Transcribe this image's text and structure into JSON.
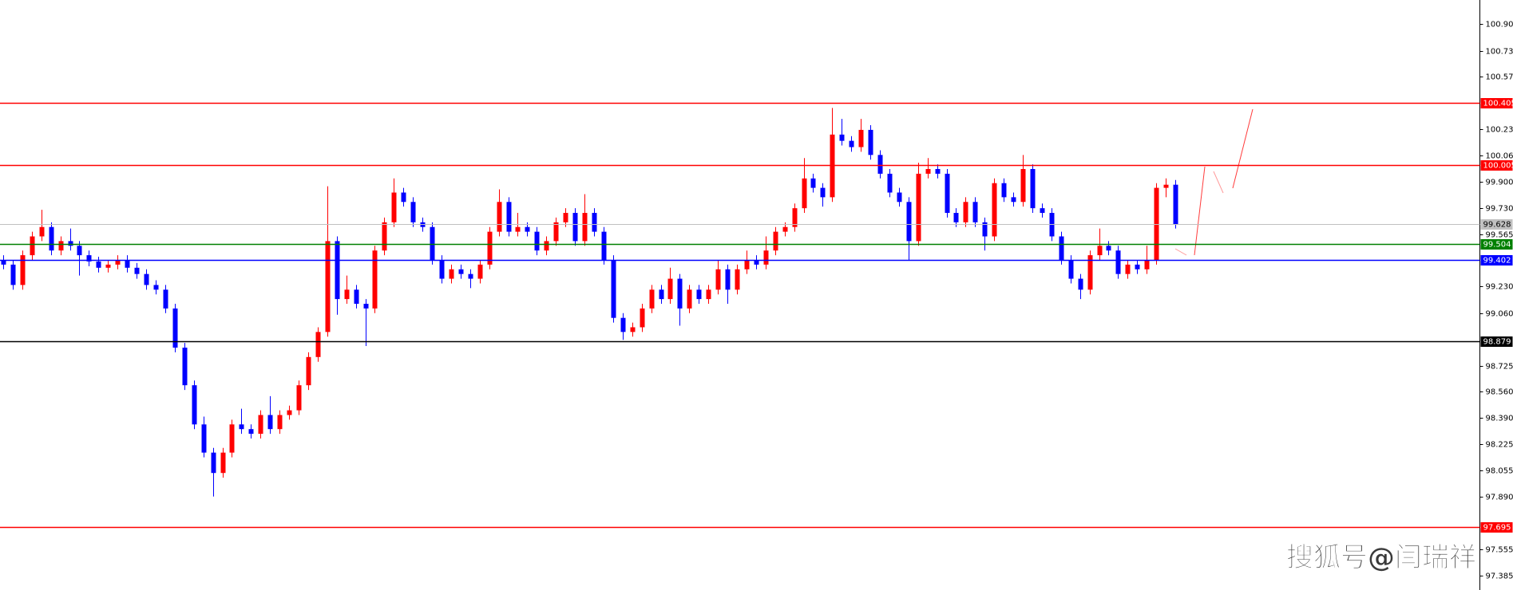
{
  "chart_data": {
    "type": "candlestick",
    "watermark": "搜狐号@闫瑞祥",
    "up_color": "#ff0000",
    "down_color": "#0000ff",
    "ylim": [
      97.293,
      101.059
    ],
    "yticks": [
      100.905,
      100.735,
      {
        "value": 100.57,
        "label": "100.570"
      },
      100.235,
      100.065,
      {
        "value": 99.9,
        "label": "99.900"
      },
      {
        "value": 99.73,
        "label": "99.730"
      },
      99.565,
      {
        "value": 99.23,
        "label": "99.230"
      },
      {
        "value": 99.06,
        "label": "99.060"
      },
      98.725,
      {
        "value": 98.56,
        "label": "98.560"
      },
      {
        "value": 98.39,
        "label": "98.390"
      },
      98.225,
      98.055,
      {
        "value": 97.89,
        "label": "97.890"
      },
      97.555,
      97.385
    ],
    "levels": [
      {
        "value": 100.405,
        "color": "#ff0000"
      },
      {
        "value": 100.005,
        "color": "#ff0000"
      },
      {
        "value": 99.628,
        "color": "#c0c0c0"
      },
      {
        "value": 99.504,
        "color": "#008000"
      },
      {
        "value": 99.402,
        "color": "#0000ff"
      },
      {
        "value": 98.879,
        "color": "#000000"
      },
      {
        "value": 97.695,
        "color": "#ff0000"
      }
    ],
    "candles": [
      [
        99.4,
        99.43,
        99.34,
        99.37
      ],
      [
        99.37,
        99.4,
        99.21,
        99.24
      ],
      [
        99.24,
        99.46,
        99.21,
        99.43
      ],
      [
        99.43,
        99.58,
        99.4,
        99.55
      ],
      [
        99.55,
        99.72,
        99.52,
        99.61
      ],
      [
        99.61,
        99.64,
        99.43,
        99.46
      ],
      [
        99.46,
        99.55,
        99.43,
        99.52
      ],
      [
        99.52,
        99.6,
        99.46,
        99.49
      ],
      [
        99.49,
        99.52,
        99.3,
        99.43
      ],
      [
        99.43,
        99.46,
        99.36,
        99.39
      ],
      [
        99.39,
        99.42,
        99.32,
        99.35
      ],
      [
        99.35,
        99.4,
        99.32,
        99.37
      ],
      [
        99.37,
        99.43,
        99.34,
        99.4
      ],
      [
        99.4,
        99.43,
        99.32,
        99.35
      ],
      [
        99.35,
        99.38,
        99.28,
        99.31
      ],
      [
        99.31,
        99.34,
        99.21,
        99.24
      ],
      [
        99.24,
        99.27,
        99.18,
        99.21
      ],
      [
        99.21,
        99.24,
        99.06,
        99.09
      ],
      [
        99.09,
        99.12,
        98.81,
        98.84
      ],
      [
        98.84,
        98.87,
        98.57,
        98.6
      ],
      [
        98.6,
        98.63,
        98.32,
        98.35
      ],
      [
        98.35,
        98.4,
        98.14,
        98.17
      ],
      [
        98.17,
        98.2,
        97.89,
        98.04
      ],
      [
        98.04,
        98.2,
        98.01,
        98.17
      ],
      [
        98.17,
        98.38,
        98.14,
        98.35
      ],
      [
        98.35,
        98.45,
        98.29,
        98.32
      ],
      [
        98.32,
        98.35,
        98.26,
        98.29
      ],
      [
        98.29,
        98.44,
        98.26,
        98.41
      ],
      [
        98.41,
        98.53,
        98.29,
        98.32
      ],
      [
        98.32,
        98.44,
        98.29,
        98.41
      ],
      [
        98.41,
        98.47,
        98.38,
        98.44
      ],
      [
        98.44,
        98.63,
        98.41,
        98.6
      ],
      [
        98.6,
        98.81,
        98.57,
        98.78
      ],
      [
        98.78,
        98.97,
        98.75,
        98.94
      ],
      [
        98.94,
        99.87,
        98.91,
        99.52
      ],
      [
        99.52,
        99.55,
        99.05,
        99.15
      ],
      [
        99.15,
        99.3,
        99.12,
        99.21
      ],
      [
        99.21,
        99.24,
        99.09,
        99.12
      ],
      [
        99.12,
        99.15,
        98.85,
        99.09
      ],
      [
        99.09,
        99.49,
        99.06,
        99.46
      ],
      [
        99.46,
        99.67,
        99.43,
        99.64
      ],
      [
        99.64,
        99.92,
        99.61,
        99.83
      ],
      [
        99.83,
        99.86,
        99.74,
        99.77
      ],
      [
        99.77,
        99.8,
        99.61,
        99.64
      ],
      [
        99.64,
        99.67,
        99.58,
        99.61
      ],
      [
        99.61,
        99.64,
        99.37,
        99.4
      ],
      [
        99.4,
        99.43,
        99.25,
        99.28
      ],
      [
        99.28,
        99.37,
        99.25,
        99.34
      ],
      [
        99.34,
        99.37,
        99.28,
        99.31
      ],
      [
        99.31,
        99.34,
        99.22,
        99.28
      ],
      [
        99.28,
        99.4,
        99.25,
        99.37
      ],
      [
        99.37,
        99.61,
        99.34,
        99.58
      ],
      [
        99.58,
        99.85,
        99.55,
        99.77
      ],
      [
        99.77,
        99.8,
        99.55,
        99.58
      ],
      [
        99.58,
        99.7,
        99.55,
        99.61
      ],
      [
        99.61,
        99.64,
        99.55,
        99.58
      ],
      [
        99.58,
        99.61,
        99.43,
        99.46
      ],
      [
        99.46,
        99.55,
        99.43,
        99.52
      ],
      [
        99.52,
        99.67,
        99.49,
        99.64
      ],
      [
        99.64,
        99.73,
        99.61,
        99.7
      ],
      [
        99.7,
        99.73,
        99.49,
        99.52
      ],
      [
        99.52,
        99.82,
        99.49,
        99.7
      ],
      [
        99.7,
        99.73,
        99.55,
        99.58
      ],
      [
        99.58,
        99.61,
        99.37,
        99.4
      ],
      [
        99.4,
        99.43,
        99.0,
        99.03
      ],
      [
        99.03,
        99.06,
        98.89,
        98.94
      ],
      [
        98.94,
        99.0,
        98.91,
        98.97
      ],
      [
        98.97,
        99.12,
        98.94,
        99.09
      ],
      [
        99.09,
        99.24,
        99.06,
        99.21
      ],
      [
        99.21,
        99.24,
        99.12,
        99.15
      ],
      [
        99.15,
        99.35,
        99.12,
        99.28
      ],
      [
        99.28,
        99.31,
        98.98,
        99.09
      ],
      [
        99.09,
        99.24,
        99.06,
        99.21
      ],
      [
        99.21,
        99.24,
        99.12,
        99.15
      ],
      [
        99.15,
        99.24,
        99.12,
        99.21
      ],
      [
        99.21,
        99.4,
        99.18,
        99.34
      ],
      [
        99.34,
        99.37,
        99.12,
        99.21
      ],
      [
        99.21,
        99.37,
        99.18,
        99.34
      ],
      [
        99.34,
        99.46,
        99.31,
        99.4
      ],
      [
        99.4,
        99.43,
        99.34,
        99.37
      ],
      [
        99.37,
        99.55,
        99.34,
        99.46
      ],
      [
        99.46,
        99.61,
        99.43,
        99.58
      ],
      [
        99.58,
        99.64,
        99.55,
        99.61
      ],
      [
        99.61,
        99.76,
        99.58,
        99.73
      ],
      [
        99.73,
        100.05,
        99.7,
        99.92
      ],
      [
        99.92,
        99.95,
        99.83,
        99.86
      ],
      [
        99.86,
        99.89,
        99.74,
        99.8
      ],
      [
        99.8,
        100.37,
        99.77,
        100.2
      ],
      [
        100.2,
        100.3,
        100.13,
        100.16
      ],
      [
        100.16,
        100.19,
        100.09,
        100.12
      ],
      [
        100.12,
        100.3,
        100.09,
        100.23
      ],
      [
        100.23,
        100.26,
        100.04,
        100.07
      ],
      [
        100.07,
        100.1,
        99.92,
        99.95
      ],
      [
        99.95,
        99.98,
        99.8,
        99.83
      ],
      [
        99.83,
        99.86,
        99.74,
        99.77
      ],
      [
        99.77,
        99.8,
        99.4,
        99.52
      ],
      [
        99.52,
        100.02,
        99.49,
        99.95
      ],
      [
        99.95,
        100.05,
        99.92,
        99.98
      ],
      [
        99.98,
        100.01,
        99.92,
        99.95
      ],
      [
        99.95,
        99.98,
        99.67,
        99.7
      ],
      [
        99.7,
        99.73,
        99.61,
        99.64
      ],
      [
        99.64,
        99.8,
        99.61,
        99.77
      ],
      [
        99.77,
        99.8,
        99.61,
        99.64
      ],
      [
        99.64,
        99.67,
        99.46,
        99.55
      ],
      [
        99.55,
        99.92,
        99.52,
        99.89
      ],
      [
        99.89,
        99.92,
        99.77,
        99.8
      ],
      [
        99.8,
        99.83,
        99.74,
        99.77
      ],
      [
        99.77,
        100.07,
        99.74,
        99.98
      ],
      [
        99.98,
        100.01,
        99.7,
        99.73
      ],
      [
        99.73,
        99.76,
        99.67,
        99.7
      ],
      [
        99.7,
        99.73,
        99.52,
        99.55
      ],
      [
        99.55,
        99.58,
        99.37,
        99.4
      ],
      [
        99.4,
        99.43,
        99.25,
        99.28
      ],
      [
        99.28,
        99.31,
        99.15,
        99.21
      ],
      [
        99.21,
        99.46,
        99.18,
        99.43
      ],
      [
        99.43,
        99.6,
        99.4,
        99.49
      ],
      [
        99.49,
        99.52,
        99.43,
        99.46
      ],
      [
        99.46,
        99.49,
        99.28,
        99.31
      ],
      [
        99.31,
        99.4,
        99.28,
        99.37
      ],
      [
        99.37,
        99.4,
        99.31,
        99.34
      ],
      [
        99.34,
        99.49,
        99.31,
        99.4
      ],
      [
        99.4,
        99.89,
        99.37,
        99.86
      ],
      [
        99.86,
        99.92,
        99.8,
        99.88
      ],
      [
        99.88,
        99.91,
        99.6,
        99.628
      ]
    ]
  }
}
